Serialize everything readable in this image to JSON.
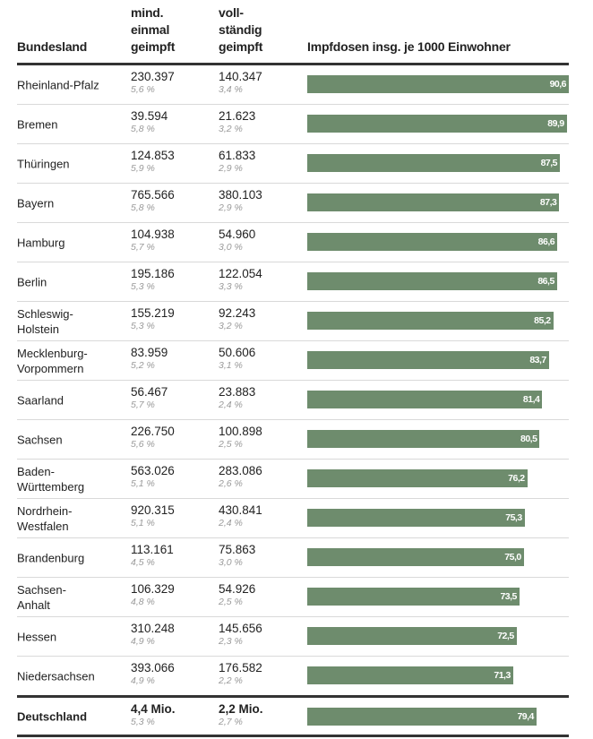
{
  "header": {
    "land": "Bundesland",
    "first": [
      "mind.",
      "einmal",
      "geimpft"
    ],
    "full": [
      "voll-",
      "ständig",
      "geimpft"
    ],
    "doses": "Impfdosen insg. je 1000 Einwohner"
  },
  "colors": {
    "bar": "#6e8c6d",
    "rule": "#333333",
    "divider": "#d9d9d9"
  },
  "chart_data": {
    "type": "bar",
    "title": "Impfdosen insg. je 1000 Einwohner",
    "xlabel": "",
    "ylabel": "",
    "xlim": [
      0,
      90.6
    ],
    "categories": [
      "Rheinland-Pfalz",
      "Bremen",
      "Thüringen",
      "Bayern",
      "Hamburg",
      "Berlin",
      "Schleswig-Holstein",
      "Mecklenburg-Vorpommern",
      "Saarland",
      "Sachsen",
      "Baden-Württemberg",
      "Nordrhein-Westfalen",
      "Brandenburg",
      "Sachsen-Anhalt",
      "Hessen",
      "Niedersachsen",
      "Deutschland"
    ],
    "values": [
      90.6,
      89.9,
      87.5,
      87.3,
      86.6,
      86.5,
      85.2,
      83.7,
      81.4,
      80.5,
      76.2,
      75.3,
      75.0,
      73.5,
      72.5,
      71.3,
      79.4
    ]
  },
  "rows": [
    {
      "land": "Rheinland-Pfalz",
      "first": "230.397",
      "first_pct": "5,6 %",
      "full": "140.347",
      "full_pct": "3,4 %",
      "doses": 90.6,
      "doses_label": "90,6"
    },
    {
      "land": "Bremen",
      "first": "39.594",
      "first_pct": "5,8 %",
      "full": "21.623",
      "full_pct": "3,2 %",
      "doses": 89.9,
      "doses_label": "89,9"
    },
    {
      "land": "Thüringen",
      "first": "124.853",
      "first_pct": "5,9 %",
      "full": "61.833",
      "full_pct": "2,9 %",
      "doses": 87.5,
      "doses_label": "87,5"
    },
    {
      "land": "Bayern",
      "first": "765.566",
      "first_pct": "5,8 %",
      "full": "380.103",
      "full_pct": "2,9 %",
      "doses": 87.3,
      "doses_label": "87,3"
    },
    {
      "land": "Hamburg",
      "first": "104.938",
      "first_pct": "5,7 %",
      "full": "54.960",
      "full_pct": "3,0 %",
      "doses": 86.6,
      "doses_label": "86,6"
    },
    {
      "land": "Berlin",
      "first": "195.186",
      "first_pct": "5,3 %",
      "full": "122.054",
      "full_pct": "3,3 %",
      "doses": 86.5,
      "doses_label": "86,5"
    },
    {
      "land": "Schleswig-\nHolstein",
      "first": "155.219",
      "first_pct": "5,3 %",
      "full": "92.243",
      "full_pct": "3,2 %",
      "doses": 85.2,
      "doses_label": "85,2"
    },
    {
      "land": "Mecklenburg-\nVorpommern",
      "first": "83.959",
      "first_pct": "5,2 %",
      "full": "50.606",
      "full_pct": "3,1 %",
      "doses": 83.7,
      "doses_label": "83,7"
    },
    {
      "land": "Saarland",
      "first": "56.467",
      "first_pct": "5,7 %",
      "full": "23.883",
      "full_pct": "2,4 %",
      "doses": 81.4,
      "doses_label": "81,4"
    },
    {
      "land": "Sachsen",
      "first": "226.750",
      "first_pct": "5,6 %",
      "full": "100.898",
      "full_pct": "2,5 %",
      "doses": 80.5,
      "doses_label": "80,5"
    },
    {
      "land": "Baden-\nWürttemberg",
      "first": "563.026",
      "first_pct": "5,1 %",
      "full": "283.086",
      "full_pct": "2,6 %",
      "doses": 76.2,
      "doses_label": "76,2"
    },
    {
      "land": "Nordrhein-\nWestfalen",
      "first": "920.315",
      "first_pct": "5,1 %",
      "full": "430.841",
      "full_pct": "2,4 %",
      "doses": 75.3,
      "doses_label": "75,3"
    },
    {
      "land": "Brandenburg",
      "first": "113.161",
      "first_pct": "4,5 %",
      "full": "75.863",
      "full_pct": "3,0 %",
      "doses": 75.0,
      "doses_label": "75,0"
    },
    {
      "land": "Sachsen-\nAnhalt",
      "first": "106.329",
      "first_pct": "4,8 %",
      "full": "54.926",
      "full_pct": "2,5 %",
      "doses": 73.5,
      "doses_label": "73,5"
    },
    {
      "land": "Hessen",
      "first": "310.248",
      "first_pct": "4,9 %",
      "full": "145.656",
      "full_pct": "2,3 %",
      "doses": 72.5,
      "doses_label": "72,5"
    },
    {
      "land": "Niedersachsen",
      "first": "393.066",
      "first_pct": "4,9 %",
      "full": "176.582",
      "full_pct": "2,2 %",
      "doses": 71.3,
      "doses_label": "71,3"
    }
  ],
  "total": {
    "land": "Deutschland",
    "first": "4,4 Mio.",
    "first_pct": "5,3 %",
    "full": "2,2 Mio.",
    "full_pct": "2,7 %",
    "doses": 79.4,
    "doses_label": "79,4"
  }
}
